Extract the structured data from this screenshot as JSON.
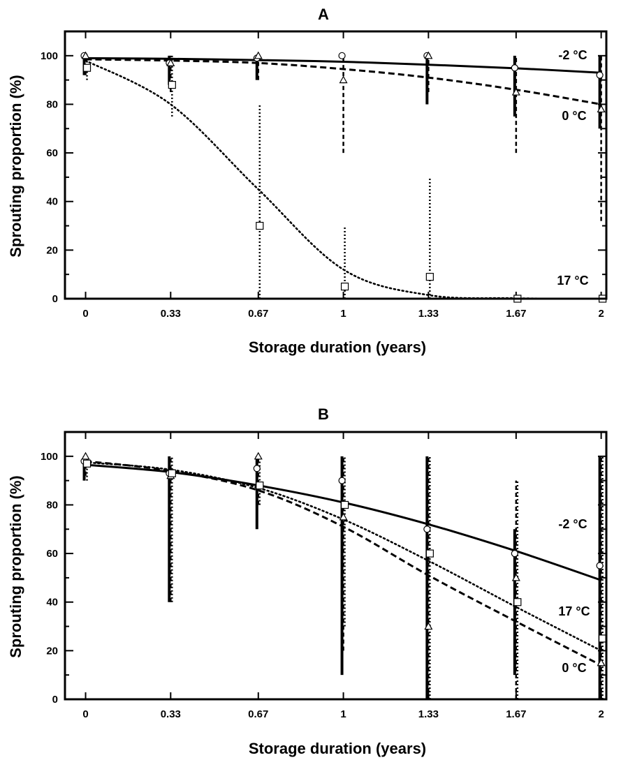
{
  "chart_data": [
    {
      "type": "line",
      "title": "A",
      "xlabel": "Storage duration (years)",
      "ylabel": "Sprouting proportion (%)",
      "xlim": [
        -0.08,
        2.02
      ],
      "ylim": [
        0,
        110
      ],
      "xticks": [
        "0",
        "0.33",
        "0.67",
        "1",
        "1.33",
        "1.67",
        "2"
      ],
      "yticks": [
        "0",
        "20",
        "40",
        "60",
        "80",
        "100"
      ],
      "x": [
        0,
        0.33,
        0.67,
        1,
        1.33,
        1.67,
        2
      ],
      "series": [
        {
          "name": "-2 °C",
          "line": "solid",
          "marker": "circle",
          "curve": [
            99,
            98.7,
            98.2,
            97.5,
            96.3,
            94.8,
            93
          ],
          "observed": [
            100,
            97,
            99,
            100,
            100,
            95,
            92
          ],
          "error_low": [
            92,
            88,
            90,
            null,
            80,
            75,
            70
          ],
          "error_high": [
            100,
            100,
            100,
            null,
            100,
            100,
            100
          ]
        },
        {
          "name": "0 °C",
          "line": "dashed",
          "marker": "triangle",
          "curve": [
            98.5,
            98,
            97,
            94.5,
            91,
            86,
            80
          ],
          "observed": [
            100,
            97,
            100,
            90,
            100,
            85,
            78
          ],
          "error_low": [
            92,
            85,
            90,
            60,
            85,
            60,
            32
          ],
          "error_high": [
            100,
            100,
            100,
            100,
            100,
            100,
            100
          ]
        },
        {
          "name": "17 °C",
          "line": "dotted",
          "marker": "square",
          "curve": [
            98,
            80,
            45,
            12,
            1.5,
            0.2,
            0
          ],
          "observed": [
            95,
            88,
            30,
            5,
            9,
            0,
            0
          ],
          "error_low": [
            90,
            75,
            0,
            0,
            0,
            0,
            0
          ],
          "error_high": [
            100,
            100,
            80,
            30,
            50,
            0,
            0
          ]
        }
      ]
    },
    {
      "type": "line",
      "title": "B",
      "xlabel": "Storage duration (years)",
      "ylabel": "Sprouting proportion (%)",
      "xlim": [
        -0.08,
        2.02
      ],
      "ylim": [
        0,
        110
      ],
      "xticks": [
        "0",
        "0.33",
        "0.67",
        "1",
        "1.33",
        "1.67",
        "2"
      ],
      "yticks": [
        "0",
        "20",
        "40",
        "60",
        "80",
        "100"
      ],
      "x": [
        0,
        0.33,
        0.67,
        1,
        1.33,
        1.67,
        2
      ],
      "series": [
        {
          "name": "-2 °C",
          "line": "solid",
          "marker": "circle",
          "curve": [
            96.5,
            93.5,
            88,
            81,
            72,
            61,
            49
          ],
          "observed": [
            98,
            93,
            95,
            90,
            70,
            60,
            55
          ],
          "error_low": [
            90,
            40,
            70,
            10,
            0,
            10,
            0
          ],
          "error_high": [
            100,
            100,
            100,
            100,
            100,
            70,
            100
          ]
        },
        {
          "name": "0 °C",
          "line": "dashed",
          "marker": "triangle",
          "curve": [
            98,
            94,
            86,
            71,
            51,
            32,
            14
          ],
          "observed": [
            100,
            92,
            100,
            75,
            30,
            50,
            15
          ],
          "error_low": [
            92,
            40,
            80,
            20,
            0,
            0,
            0
          ],
          "error_high": [
            100,
            100,
            100,
            100,
            100,
            90,
            100
          ]
        },
        {
          "name": "17 °C",
          "line": "dotted",
          "marker": "square",
          "curve": [
            97.5,
            94.5,
            87,
            74,
            57,
            38,
            20
          ],
          "observed": [
            97,
            93,
            88,
            80,
            60,
            40,
            25
          ],
          "error_low": [
            90,
            40,
            80,
            30,
            0,
            0,
            0
          ],
          "error_high": [
            100,
            100,
            100,
            100,
            100,
            90,
            100
          ]
        }
      ]
    }
  ]
}
